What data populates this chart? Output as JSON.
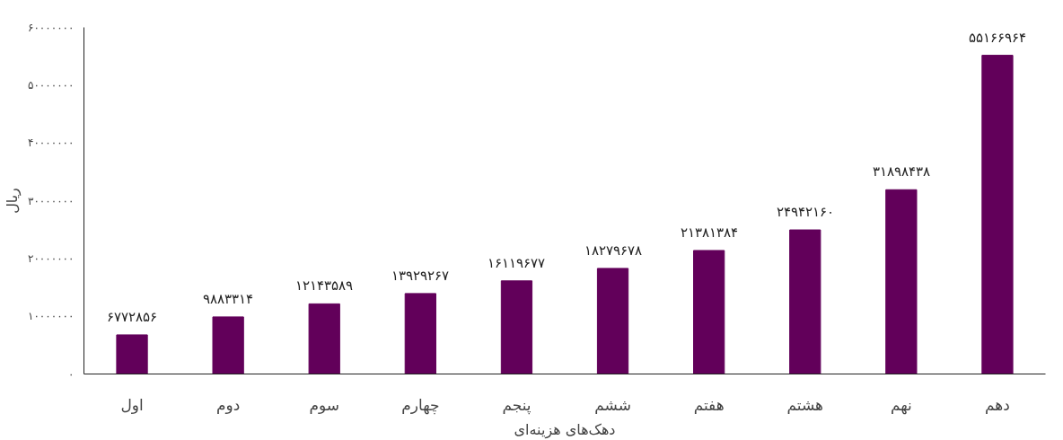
{
  "chart_data": {
    "type": "bar",
    "xlabel": "دهک‌های هزینه‌ای",
    "ylabel": "ریال",
    "categories": [
      "اول",
      "دوم",
      "سوم",
      "چهارم",
      "پنجم",
      "ششم",
      "هفتم",
      "هشتم",
      "نهم",
      "دهم"
    ],
    "values": [
      6772856,
      9883314,
      12143589,
      13929267,
      16119677,
      18279678,
      21381384,
      24942160,
      31898438,
      55166964
    ],
    "value_labels": [
      "۶۷۷۲۸۵۶",
      "۹۸۸۳۳۱۴",
      "۱۲۱۴۳۵۸۹",
      "۱۳۹۲۹۲۶۷",
      "۱۶۱۱۹۶۷۷",
      "۱۸۲۷۹۶۷۸",
      "۲۱۳۸۱۳۸۴",
      "۲۴۹۴۲۱۶۰",
      "۳۱۸۹۸۴۳۸",
      "۵۵۱۶۶۹۶۴"
    ],
    "color": "#62005a",
    "ylim": [
      0,
      60000000
    ],
    "yticks": [
      {
        "value": 0,
        "label": "۰"
      },
      {
        "value": 10000000,
        "label": "۱۰۰۰۰۰۰۰"
      },
      {
        "value": 20000000,
        "label": "۲۰۰۰۰۰۰۰"
      },
      {
        "value": 30000000,
        "label": "۳۰۰۰۰۰۰۰"
      },
      {
        "value": 40000000,
        "label": "۴۰۰۰۰۰۰۰"
      },
      {
        "value": 50000000,
        "label": "۵۰۰۰۰۰۰۰"
      },
      {
        "value": 60000000,
        "label": "۶۰۰۰۰۰۰۰"
      }
    ],
    "grid": false
  }
}
